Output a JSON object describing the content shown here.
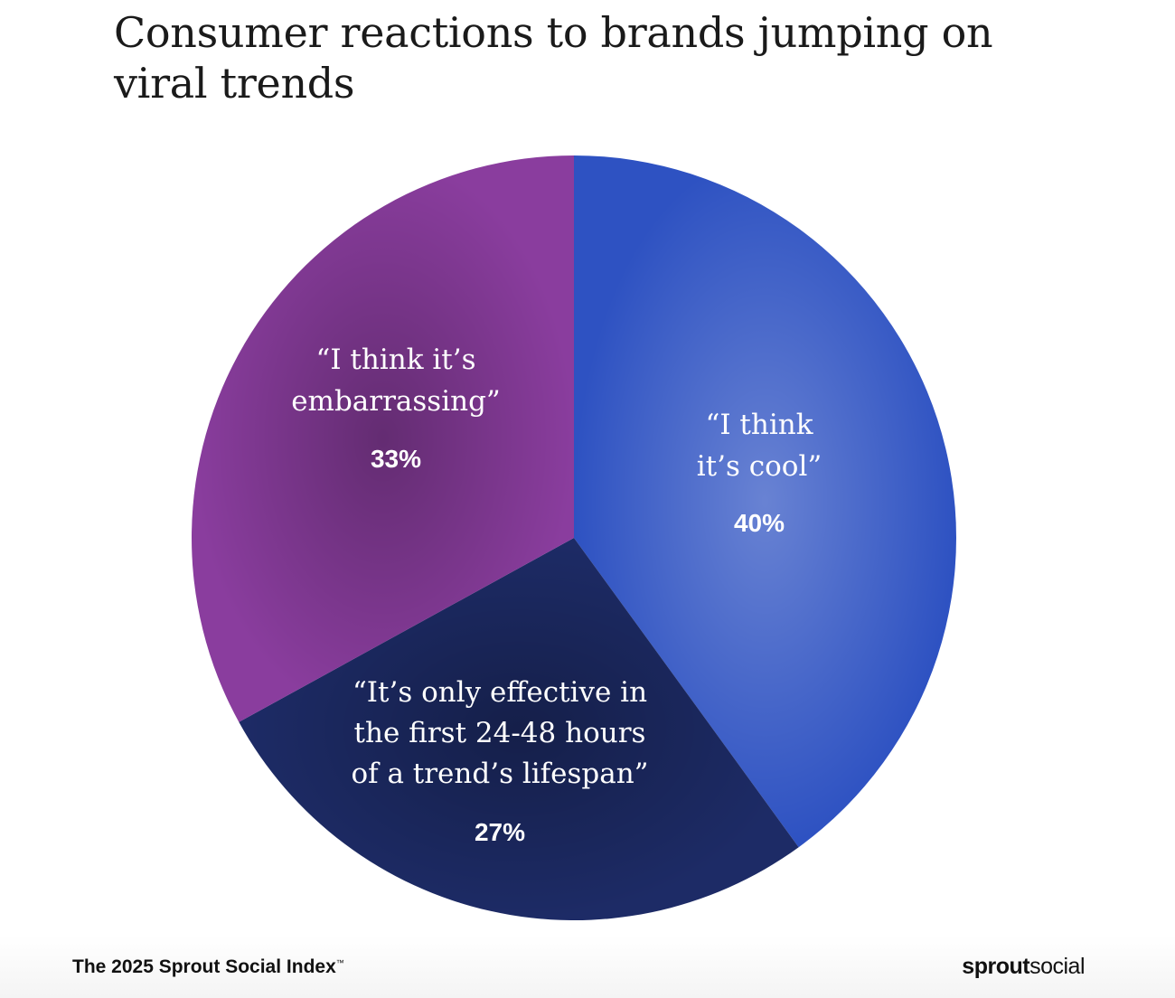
{
  "chart_data": {
    "type": "pie",
    "title": "Consumer reactions to brands jumping on viral trends",
    "slices": [
      {
        "label_lines": [
          "“I think",
          "it’s cool”"
        ],
        "value": 40,
        "value_label": "40%",
        "color": "#2e52c2"
      },
      {
        "label_lines": [
          "“It’s only effective in",
          "the first 24-48 hours",
          "of a trend’s lifespan”"
        ],
        "value": 27,
        "value_label": "27%",
        "color": "#1d2b66"
      },
      {
        "label_lines": [
          "“I think it’s",
          "embarrassing”"
        ],
        "value": 33,
        "value_label": "33%",
        "color": "#8a3d9e"
      }
    ],
    "start_angle_deg": 0,
    "direction": "clockwise"
  },
  "footer": {
    "source": "The 2025 Sprout Social Index",
    "trademark": "™",
    "brand_bold": "sprout",
    "brand_light": "social"
  }
}
